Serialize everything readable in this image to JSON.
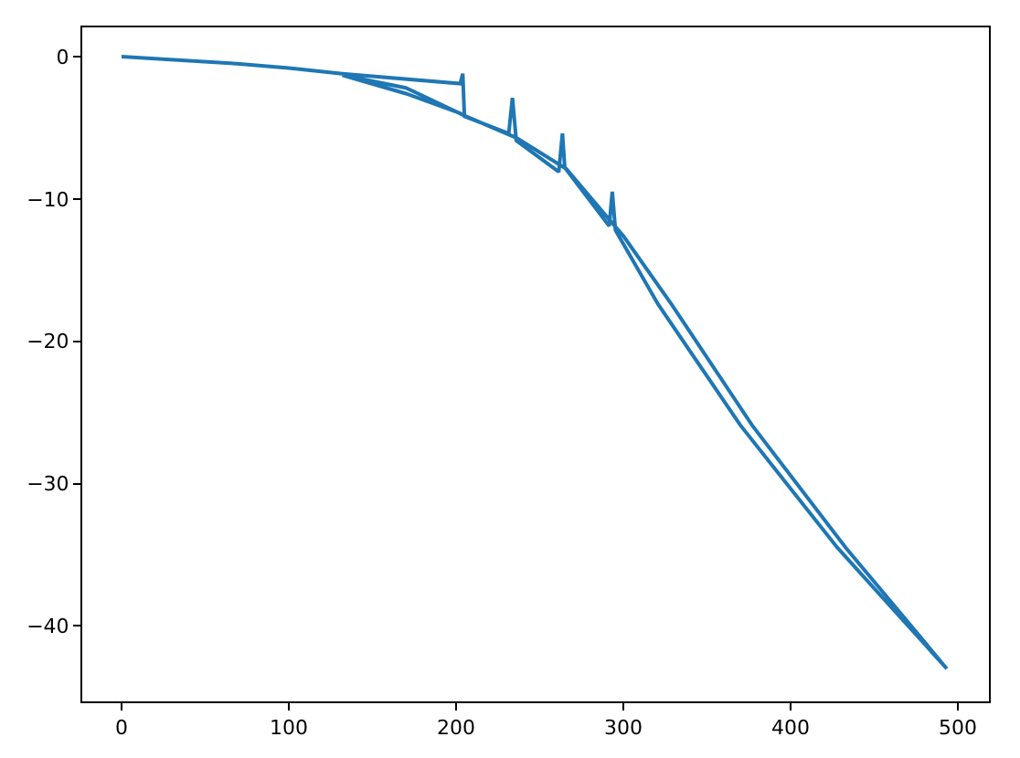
{
  "chart_data": {
    "type": "line",
    "xlim": [
      -23.5,
      518.6
    ],
    "ylim": [
      -45.3,
      2.05
    ],
    "xticks": [
      0,
      100,
      200,
      300,
      400,
      500
    ],
    "yticks": [
      -40,
      -30,
      -20,
      -10,
      0
    ],
    "grid": false,
    "marker": "none",
    "line_style": "solid",
    "series": [
      {
        "color": "#1f77b4",
        "x": [
          0,
          69,
          100,
          132,
          202.5,
          204,
          205,
          231.5,
          233.7,
          236,
          261.4,
          263.6,
          265,
          291.6,
          293.4,
          295.3,
          320.8,
          370,
          428,
          493.4,
          433,
          377,
          328.8,
          300,
          292,
          266,
          236,
          206,
          170,
          132,
          170,
          203
        ],
        "values": [
          0,
          -0.5,
          -0.8,
          -1.2,
          -1.9,
          -1.2,
          -4.2,
          -5.4,
          -2.9,
          -5.9,
          -8.1,
          -5.4,
          -7.8,
          -11.9,
          -9.5,
          -12.2,
          -17.4,
          -25.9,
          -34.5,
          -43,
          -34.5,
          -25.9,
          -17.4,
          -12.6,
          -11.5,
          -7.9,
          -5.7,
          -4.2,
          -2.2,
          -1.3,
          -2.6,
          -4.0
        ]
      }
    ]
  }
}
